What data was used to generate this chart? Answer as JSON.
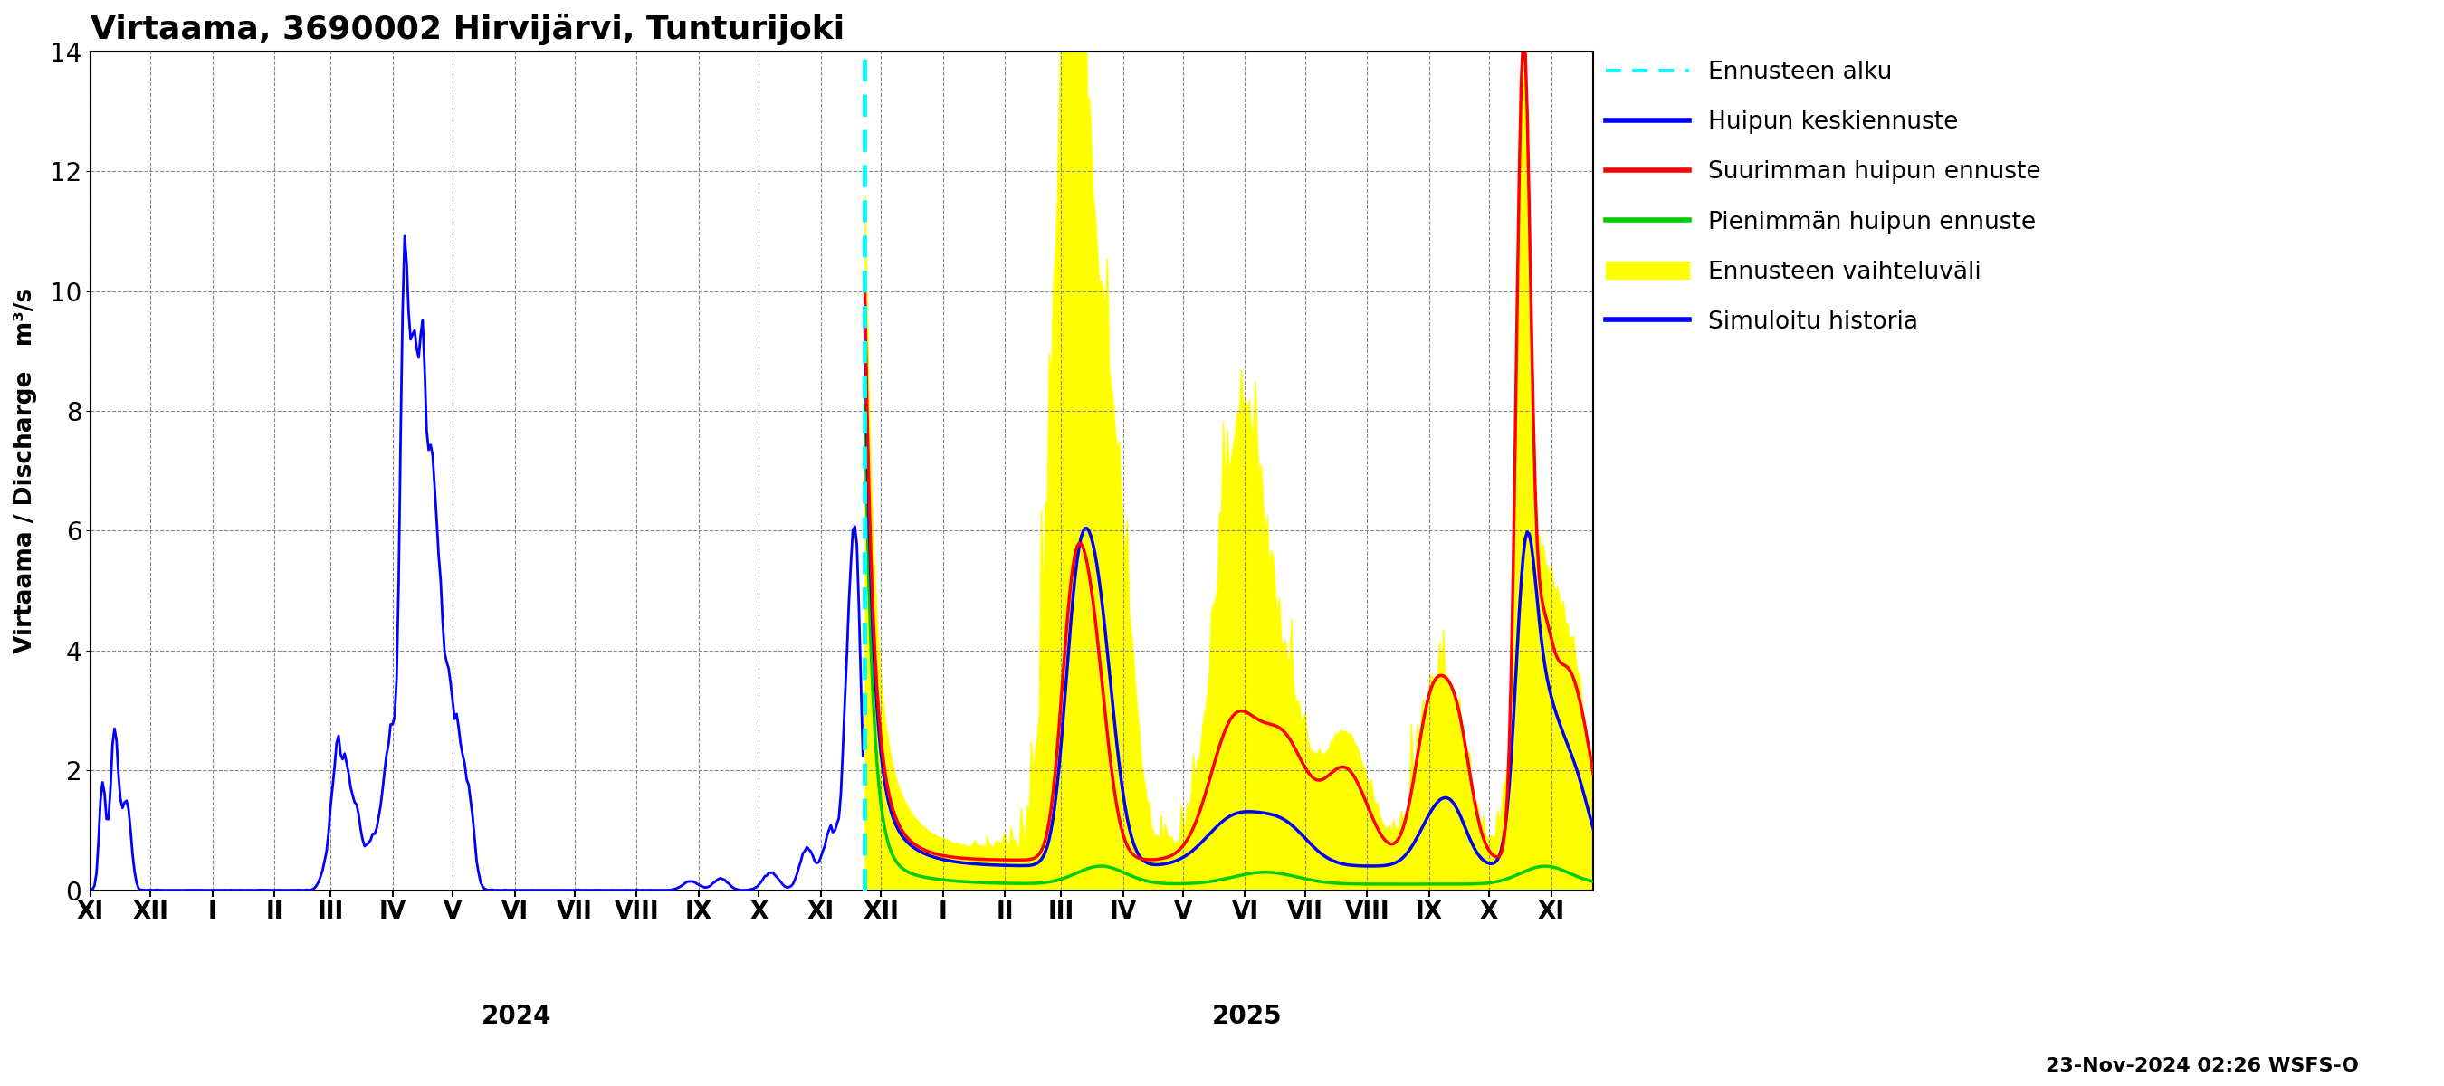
{
  "title": "Virtaama, 3690002 Hirvijärvi, Tunturijoki",
  "ylabel_left": "Virtaama / Discharge   m³/s",
  "ylim": [
    0,
    14
  ],
  "yticks": [
    0,
    2,
    4,
    6,
    8,
    10,
    12,
    14
  ],
  "background_color": "#ffffff",
  "grid_color": "#888888",
  "date_label": "23-Nov-2024 02:26 WSFS-O",
  "legend_entries": [
    {
      "label": "Ennusteen alku",
      "color": "#00ffff",
      "lw": 3,
      "ls": "dotted"
    },
    {
      "label": "Huipun keskiennuste",
      "color": "#0000ff",
      "lw": 3,
      "ls": "solid"
    },
    {
      "label": "Suurimman huipun ennuste",
      "color": "#ff0000",
      "lw": 3,
      "ls": "solid"
    },
    {
      "label": "Pienimmän huipun ennuste",
      "color": "#00cc00",
      "lw": 3,
      "ls": "solid"
    },
    {
      "label": "Ennusteen vaihteluväli",
      "color": "#ffff00",
      "lw": 8,
      "ls": "solid"
    },
    {
      "label": "Simuloitu historia",
      "color": "#0000ff",
      "lw": 3,
      "ls": "solid"
    }
  ],
  "month_labels": [
    "XI",
    "XII",
    "I",
    "II",
    "III",
    "IV",
    "V",
    "VI",
    "VII",
    "VIII",
    "IX",
    "X",
    "XI",
    "XII",
    "I",
    "II",
    "III",
    "IV",
    "V",
    "VI",
    "VII",
    "VIII",
    "IX",
    "X",
    "XI"
  ],
  "hist_color": "#0000ff",
  "mean_color": "#0000ff",
  "max_color": "#ff0000",
  "min_color": "#00cc00",
  "band_color": "#ffff00",
  "vline_color": "#00ffff"
}
